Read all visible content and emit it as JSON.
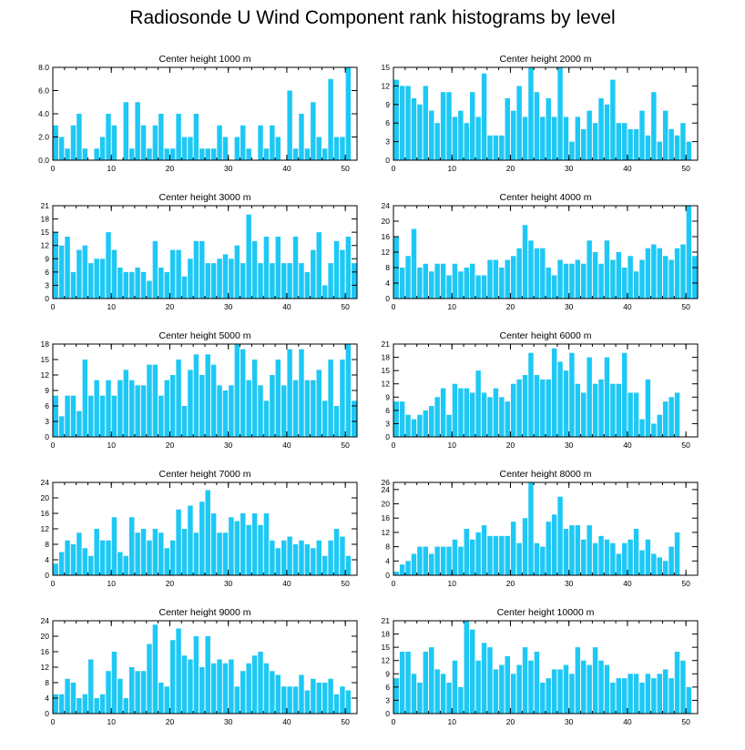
{
  "title": "Radiosonde U Wind Component rank histograms by level",
  "colors": {
    "bar": "#1ec8f5",
    "axis": "#000000"
  },
  "chart_data": [
    {
      "type": "bar",
      "title": "Center height 1000 m",
      "xlim": [
        0,
        52
      ],
      "ylim": [
        0,
        8
      ],
      "xticks": [
        0,
        10,
        20,
        30,
        40,
        50
      ],
      "yticks": [
        0,
        2,
        4,
        6,
        8
      ],
      "ytick_labels": [
        "0.0",
        "2.0",
        "4.0",
        "6.0",
        "8.0"
      ],
      "values": [
        3,
        2,
        1,
        3,
        4,
        1,
        0,
        1,
        2,
        4,
        3,
        0,
        5,
        1,
        5,
        3,
        1,
        3,
        4,
        1,
        1,
        4,
        2,
        2,
        4,
        1,
        1,
        1,
        3,
        2,
        0,
        2,
        3,
        1,
        0,
        3,
        1,
        3,
        2,
        0,
        6,
        1,
        4,
        1,
        5,
        2,
        1,
        7,
        2,
        2,
        8
      ]
    },
    {
      "type": "bar",
      "title": "Center height 2000 m",
      "xlim": [
        0,
        52
      ],
      "ylim": [
        0,
        15
      ],
      "xticks": [
        0,
        10,
        20,
        30,
        40,
        50
      ],
      "yticks": [
        0,
        3,
        6,
        9,
        12,
        15
      ],
      "ytick_labels": [
        "0",
        "3",
        "6",
        "9",
        "12",
        "15"
      ],
      "values": [
        13,
        12,
        12,
        10,
        9,
        12,
        8,
        6,
        11,
        11,
        7,
        8,
        6,
        11,
        7,
        14,
        4,
        4,
        4,
        10,
        8,
        12,
        7,
        15,
        11,
        7,
        10,
        7,
        15,
        7,
        3,
        7,
        5,
        8,
        6,
        10,
        9,
        13,
        6,
        6,
        5,
        5,
        8,
        4,
        11,
        3,
        8,
        5,
        4,
        6,
        3
      ]
    },
    {
      "type": "bar",
      "title": "Center height 3000 m",
      "xlim": [
        0,
        52
      ],
      "ylim": [
        0,
        21
      ],
      "xticks": [
        0,
        10,
        20,
        30,
        40,
        50
      ],
      "yticks": [
        0,
        3,
        6,
        9,
        12,
        15,
        18,
        21
      ],
      "ytick_labels": [
        "0",
        "3",
        "6",
        "9",
        "12",
        "15",
        "18",
        "21"
      ],
      "values": [
        15,
        12,
        14,
        6,
        11,
        12,
        8,
        9,
        9,
        15,
        11,
        7,
        6,
        6,
        7,
        6,
        4,
        13,
        7,
        6,
        11,
        11,
        5,
        9,
        13,
        13,
        8,
        8,
        9,
        10,
        9,
        12,
        8,
        19,
        13,
        8,
        14,
        8,
        14,
        8,
        8,
        14,
        8,
        6,
        11,
        15,
        3,
        8,
        13,
        11,
        14,
        8
      ]
    },
    {
      "type": "bar",
      "title": "Center height 4000 m",
      "xlim": [
        0,
        52
      ],
      "ylim": [
        0,
        24
      ],
      "xticks": [
        0,
        10,
        20,
        30,
        40,
        50
      ],
      "yticks": [
        0,
        4,
        8,
        12,
        16,
        20,
        24
      ],
      "ytick_labels": [
        "0",
        "4",
        "8",
        "12",
        "16",
        "20",
        "24"
      ],
      "values": [
        16,
        8,
        11,
        18,
        8,
        9,
        7,
        9,
        9,
        6,
        9,
        7,
        8,
        9,
        6,
        6,
        10,
        10,
        8,
        10,
        11,
        13,
        19,
        15,
        13,
        13,
        8,
        6,
        10,
        9,
        9,
        10,
        9,
        15,
        12,
        9,
        15,
        10,
        12,
        8,
        11,
        7,
        10,
        13,
        14,
        13,
        11,
        10,
        13,
        14,
        24,
        11
      ]
    },
    {
      "type": "bar",
      "title": "Center height 5000 m",
      "xlim": [
        0,
        52
      ],
      "ylim": [
        0,
        18
      ],
      "xticks": [
        0,
        10,
        20,
        30,
        40,
        50
      ],
      "yticks": [
        0,
        3,
        6,
        9,
        12,
        15,
        18
      ],
      "ytick_labels": [
        "0",
        "3",
        "6",
        "9",
        "12",
        "15",
        "18"
      ],
      "values": [
        8,
        4,
        8,
        8,
        5,
        15,
        8,
        11,
        8,
        11,
        8,
        11,
        13,
        11,
        10,
        10,
        14,
        14,
        8,
        11,
        12,
        15,
        6,
        13,
        16,
        12,
        16,
        14,
        10,
        9,
        10,
        18,
        17,
        11,
        15,
        10,
        7,
        12,
        15,
        10,
        17,
        11,
        17,
        11,
        11,
        13,
        7,
        15,
        6,
        15,
        18,
        7
      ]
    },
    {
      "type": "bar",
      "title": "Center height 6000 m",
      "xlim": [
        0,
        52
      ],
      "ylim": [
        0,
        21
      ],
      "xticks": [
        0,
        10,
        20,
        30,
        40,
        50
      ],
      "yticks": [
        0,
        3,
        6,
        9,
        12,
        15,
        18,
        21
      ],
      "ytick_labels": [
        "0",
        "3",
        "6",
        "9",
        "12",
        "15",
        "18",
        "21"
      ],
      "values": [
        8,
        8,
        5,
        4,
        5,
        6,
        7,
        9,
        11,
        5,
        12,
        11,
        11,
        10,
        15,
        10,
        9,
        11,
        9,
        8,
        12,
        13,
        14,
        19,
        14,
        13,
        13,
        20,
        17,
        15,
        19,
        12,
        10,
        18,
        12,
        13,
        18,
        12,
        12,
        19,
        10,
        10,
        4,
        13,
        3,
        5,
        8,
        9,
        10
      ]
    },
    {
      "type": "bar",
      "title": "Center height 7000 m",
      "xlim": [
        0,
        52
      ],
      "ylim": [
        0,
        24
      ],
      "xticks": [
        0,
        10,
        20,
        30,
        40,
        50
      ],
      "yticks": [
        0,
        4,
        8,
        12,
        16,
        20,
        24
      ],
      "ytick_labels": [
        "0",
        "4",
        "8",
        "12",
        "16",
        "20",
        "24"
      ],
      "values": [
        3,
        6,
        9,
        8,
        11,
        7,
        5,
        12,
        9,
        9,
        15,
        6,
        5,
        15,
        11,
        12,
        9,
        12,
        11,
        7,
        9,
        17,
        12,
        18,
        11,
        19,
        22,
        16,
        11,
        11,
        15,
        14,
        16,
        13,
        16,
        13,
        16,
        9,
        7,
        9,
        10,
        8,
        9,
        8,
        7,
        9,
        5,
        9,
        12,
        10,
        5
      ]
    },
    {
      "type": "bar",
      "title": "Center height 8000 m",
      "xlim": [
        0,
        52
      ],
      "ylim": [
        0,
        26
      ],
      "xticks": [
        0,
        10,
        20,
        30,
        40,
        50
      ],
      "yticks": [
        0,
        4,
        8,
        12,
        16,
        20,
        24,
        26
      ],
      "ytick_labels": [
        "0",
        "4",
        "8",
        "12",
        "16",
        "20",
        "24",
        "26"
      ],
      "values": [
        1,
        3,
        4,
        6,
        8,
        8,
        6,
        8,
        8,
        8,
        10,
        8,
        13,
        10,
        12,
        14,
        11,
        11,
        11,
        11,
        15,
        9,
        16,
        26,
        9,
        8,
        15,
        17,
        22,
        13,
        14,
        14,
        10,
        14,
        9,
        11,
        10,
        9,
        6,
        9,
        10,
        13,
        7,
        10,
        6,
        5,
        4,
        8,
        12
      ]
    },
    {
      "type": "bar",
      "title": "Center height 9000 m",
      "xlim": [
        0,
        52
      ],
      "ylim": [
        0,
        24
      ],
      "xticks": [
        0,
        10,
        20,
        30,
        40,
        50
      ],
      "yticks": [
        0,
        4,
        8,
        12,
        16,
        20,
        24
      ],
      "ytick_labels": [
        "0",
        "4",
        "8",
        "12",
        "16",
        "20",
        "24"
      ],
      "values": [
        5,
        5,
        9,
        8,
        4,
        5,
        14,
        4,
        5,
        11,
        16,
        9,
        4,
        12,
        11,
        11,
        18,
        23,
        8,
        7,
        19,
        22,
        15,
        14,
        20,
        12,
        20,
        13,
        14,
        13,
        14,
        7,
        11,
        13,
        15,
        16,
        13,
        11,
        10,
        7,
        7,
        7,
        10,
        6,
        9,
        8,
        8,
        9,
        5,
        7,
        6
      ]
    },
    {
      "type": "bar",
      "title": "Center height 10000 m",
      "xlim": [
        0,
        52
      ],
      "ylim": [
        0,
        21
      ],
      "xticks": [
        0,
        10,
        20,
        30,
        40,
        50
      ],
      "yticks": [
        0,
        3,
        6,
        9,
        12,
        15,
        18,
        21
      ],
      "ytick_labels": [
        "0",
        "3",
        "6",
        "9",
        "12",
        "15",
        "18",
        "21"
      ],
      "values": [
        8,
        14,
        14,
        9,
        7,
        14,
        15,
        10,
        9,
        7,
        12,
        6,
        21,
        19,
        12,
        16,
        15,
        10,
        11,
        13,
        9,
        11,
        15,
        12,
        14,
        7,
        8,
        10,
        10,
        11,
        9,
        15,
        12,
        11,
        15,
        12,
        11,
        7,
        8,
        8,
        9,
        9,
        7,
        9,
        8,
        9,
        10,
        8,
        14,
        12,
        6
      ]
    }
  ]
}
